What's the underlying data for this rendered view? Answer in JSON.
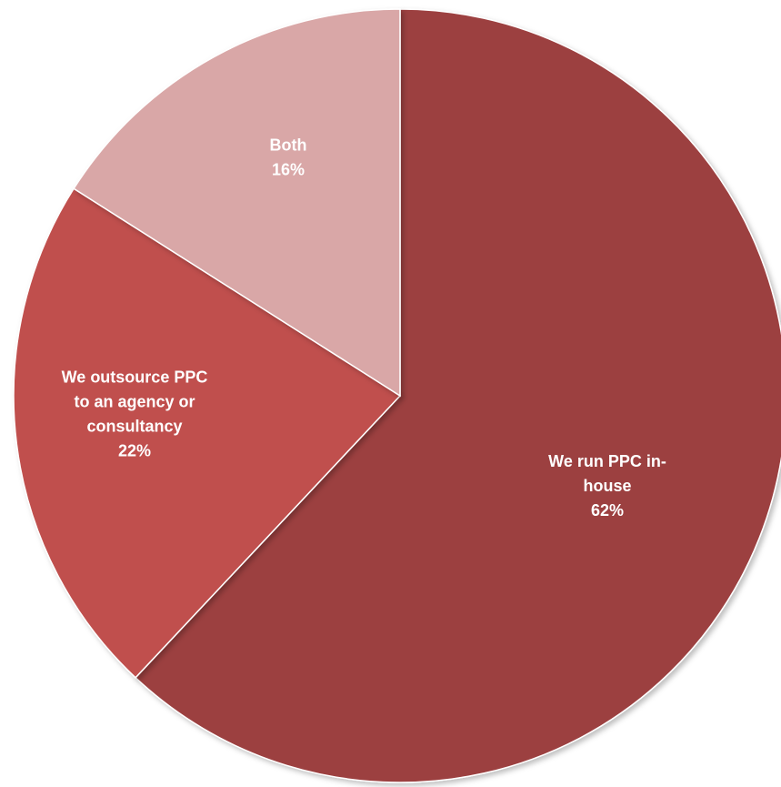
{
  "chart_data": {
    "type": "pie",
    "slices": [
      {
        "label_lines": [
          "We run PPC in-",
          "house"
        ],
        "value": 62,
        "value_label": "62%",
        "color": "#9C3F3F"
      },
      {
        "label_lines": [
          "We outsource PPC",
          "to an agency or",
          "consultancy"
        ],
        "value": 22,
        "value_label": "22%",
        "color": "#C0504D"
      },
      {
        "label_lines": [
          "Both"
        ],
        "value": 16,
        "value_label": "16%",
        "color": "#D9A7A7"
      }
    ],
    "start_direction": "top",
    "direction": "clockwise",
    "legend": "none"
  }
}
